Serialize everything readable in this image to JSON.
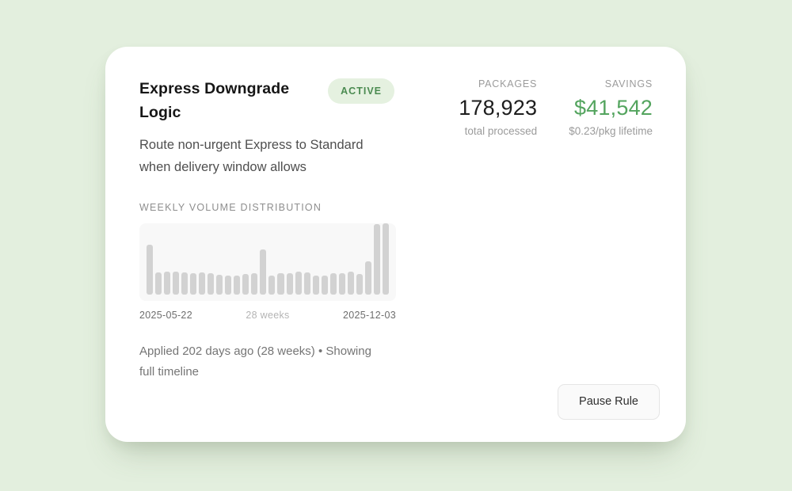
{
  "page": {
    "background_color": "#e3efde"
  },
  "card": {
    "title": "Express Downgrade Logic",
    "badge": {
      "label": "ACTIVE",
      "text_color": "#4b8b51",
      "background_color": "#e5f1e0"
    },
    "description": "Route non-urgent Express to Standard when delivery window allows",
    "stats": [
      {
        "label": "PACKAGES",
        "value": "178,923",
        "sublabel": "total processed",
        "value_color": "#1d1d1d"
      },
      {
        "label": "SAVINGS",
        "value": "$41,542",
        "sublabel": "$0.23/pkg lifetime",
        "value_color": "#53a45e"
      }
    ],
    "section_label": "WEEKLY VOLUME DISTRIBUTION",
    "timeline": {
      "start_date": "2025-05-22",
      "range_label": "28 weeks",
      "end_date": "2025-12-03"
    },
    "applied_note": "Applied 202 days ago (28 weeks) • Showing full timeline",
    "pause_button_label": "Pause Rule"
  },
  "chart_data": {
    "type": "bar",
    "title": "Weekly volume distribution",
    "x_start": "2025-05-22",
    "x_end": "2025-12-03",
    "weeks": 28,
    "values": [
      70,
      31,
      32,
      32,
      31,
      30,
      31,
      30,
      28,
      27,
      27,
      29,
      30,
      63,
      27,
      30,
      30,
      32,
      31,
      27,
      27,
      30,
      30,
      32,
      29,
      47,
      99,
      100
    ],
    "ylim": [
      0,
      100
    ],
    "grid": false,
    "legend": false,
    "bar_color": "#d2d2d2",
    "plot_background": "#f8f8f8"
  }
}
